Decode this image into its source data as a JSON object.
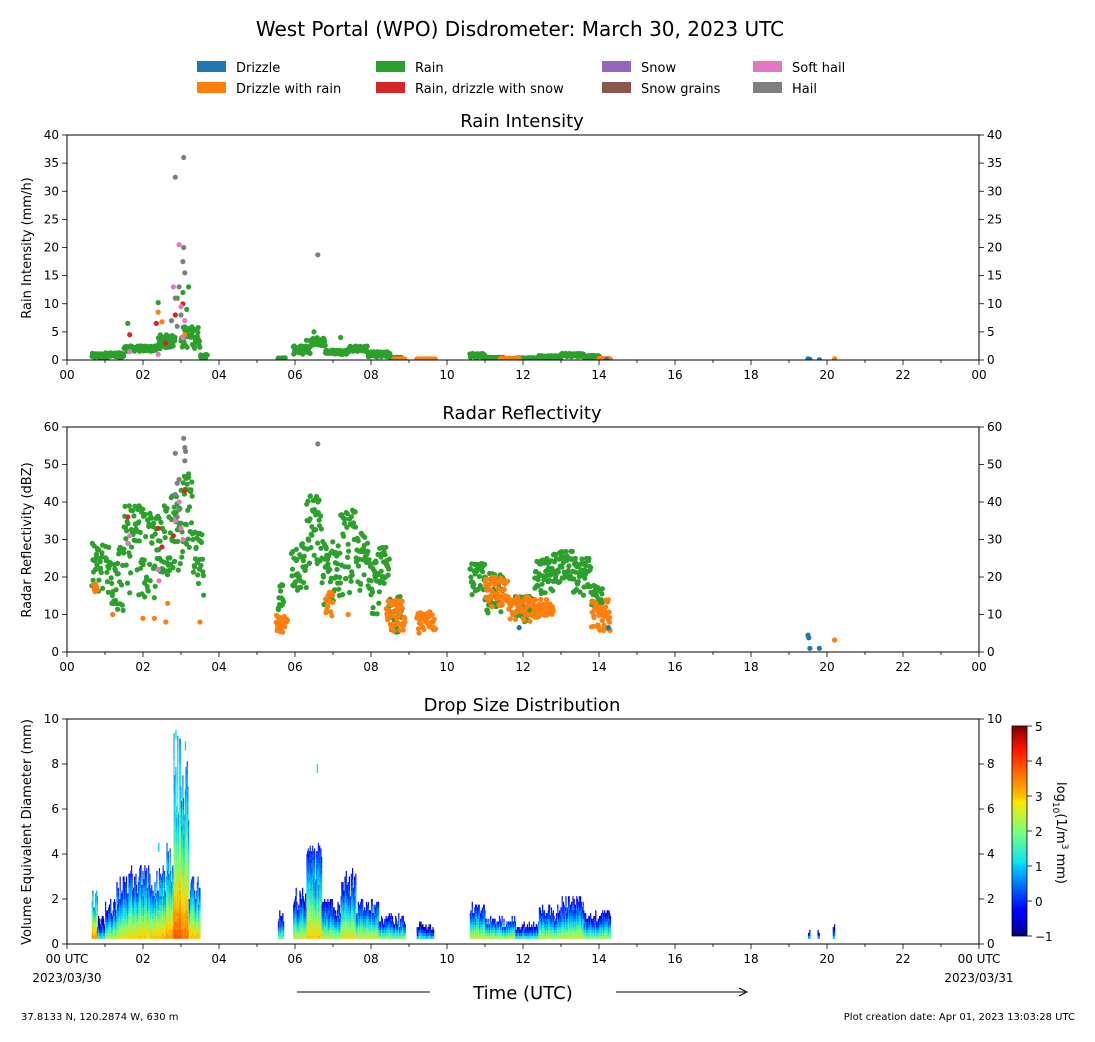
{
  "title": "West Portal (WPO) Disdrometer: March 30, 2023 UTC",
  "legend": {
    "items": [
      {
        "label": "Drizzle",
        "color": "#1f77b4"
      },
      {
        "label": "Rain",
        "color": "#2ca02c"
      },
      {
        "label": "Snow",
        "color": "#9467bd"
      },
      {
        "label": "Soft hail",
        "color": "#e377c2"
      },
      {
        "label": "Drizzle with rain",
        "color": "#ff7f0e"
      },
      {
        "label": "Rain, drizzle with snow",
        "color": "#d62728"
      },
      {
        "label": "Snow grains",
        "color": "#8c564b"
      },
      {
        "label": "Hail",
        "color": "#7f7f7f"
      }
    ]
  },
  "x_ticks": [
    "00",
    "02",
    "04",
    "06",
    "08",
    "10",
    "12",
    "14",
    "16",
    "18",
    "20",
    "22",
    "00"
  ],
  "x_ticks_bottom": [
    "00 UTC",
    "02",
    "04",
    "06",
    "08",
    "10",
    "12",
    "14",
    "16",
    "18",
    "20",
    "22",
    "00 UTC"
  ],
  "date_start": "2023/03/30",
  "date_end": "2023/03/31",
  "xlabel": "Time (UTC)",
  "footer": {
    "location": "37.8133 N, 120.2874 W, 630 m",
    "created": "Plot creation date: Apr 01, 2023 13:03:28 UTC"
  },
  "colorbar": {
    "label_main": "log",
    "label_sub": "10",
    "label_rest": "(1/m",
    "label_sup": "3",
    "label_end": " mm)",
    "ticks": [
      "5",
      "4",
      "3",
      "2",
      "1",
      "0",
      "−1"
    ],
    "range": [
      -1,
      5
    ]
  },
  "chart_data": [
    {
      "type": "scatter",
      "title": "Rain Intensity",
      "ylabel": "Rain Intensity (mm/h)",
      "ylim": [
        0,
        40
      ],
      "yticks": [
        "0",
        "5",
        "10",
        "15",
        "20",
        "25",
        "30",
        "35",
        "40"
      ],
      "xlim": [
        0,
        24
      ],
      "x_units": "hours UTC",
      "series": [
        {
          "name": "Rain",
          "color": "#2ca02c",
          "segments": [
            [
              0.65,
              0.95,
              0.3,
              1.2
            ],
            [
              1.0,
              1.5,
              0.3,
              1.3
            ],
            [
              1.5,
              2.4,
              1.5,
              2.5
            ],
            [
              2.4,
              2.85,
              2.0,
              4.5
            ],
            [
              3.0,
              3.5,
              2.0,
              6.0
            ],
            [
              3.5,
              3.7,
              0.2,
              1.0
            ],
            [
              5.55,
              5.75,
              0.1,
              0.4
            ],
            [
              5.95,
              6.4,
              1.0,
              2.5
            ],
            [
              6.4,
              6.8,
              2.5,
              4.0
            ],
            [
              6.8,
              7.4,
              1.0,
              1.8
            ],
            [
              7.4,
              7.9,
              1.5,
              2.5
            ],
            [
              7.9,
              8.5,
              0.5,
              1.5
            ],
            [
              8.5,
              8.8,
              0.1,
              0.5
            ],
            [
              10.6,
              11.0,
              0.4,
              1.2
            ],
            [
              11.0,
              11.5,
              0.2,
              0.5
            ],
            [
              11.8,
              12.4,
              0.2,
              0.4
            ],
            [
              12.4,
              13.0,
              0.3,
              0.8
            ],
            [
              13.0,
              13.6,
              0.6,
              1.2
            ],
            [
              13.6,
              14.0,
              0.3,
              0.8
            ]
          ],
          "points": [
            [
              1.6,
              6.5
            ],
            [
              2.4,
              10.2
            ],
            [
              2.9,
              11.0
            ],
            [
              3.05,
              12.0
            ],
            [
              3.15,
              9.0
            ],
            [
              3.2,
              13.0
            ],
            [
              6.5,
              5.0
            ],
            [
              7.2,
              4.0
            ],
            [
              6.3,
              3.5
            ]
          ]
        },
        {
          "name": "Drizzle with rain",
          "color": "#ff7f0e",
          "segments": [
            [
              8.6,
              8.9,
              0.05,
              0.2
            ],
            [
              9.2,
              9.7,
              0.05,
              0.2
            ],
            [
              11.4,
              11.9,
              0.1,
              0.3
            ],
            [
              14.0,
              14.3,
              0.05,
              0.3
            ]
          ],
          "points": [
            [
              2.4,
              8.5
            ],
            [
              2.5,
              6.8
            ],
            [
              3.1,
              4.5
            ],
            [
              20.2,
              0.2
            ]
          ]
        },
        {
          "name": "Drizzle",
          "color": "#1f77b4",
          "points": [
            [
              19.5,
              0.2
            ],
            [
              19.55,
              0.1
            ],
            [
              19.8,
              0.05
            ],
            [
              14.2,
              0.1
            ]
          ]
        },
        {
          "name": "Rain, drizzle with snow",
          "color": "#d62728",
          "points": [
            [
              1.65,
              4.5
            ],
            [
              2.35,
              6.5
            ],
            [
              2.6,
              3.0
            ],
            [
              2.85,
              8.0
            ],
            [
              3.05,
              10.0
            ]
          ]
        },
        {
          "name": "Soft hail",
          "color": "#e377c2",
          "points": [
            [
              1.65,
              1.5
            ],
            [
              2.4,
              1.0
            ],
            [
              2.8,
              13.0
            ],
            [
              2.95,
              20.5
            ],
            [
              3.0,
              9.5
            ],
            [
              3.1,
              7.0
            ],
            [
              3.05,
              4.0
            ]
          ]
        },
        {
          "name": "Hail",
          "color": "#7f7f7f",
          "points": [
            [
              2.85,
              32.5
            ],
            [
              3.07,
              36.0
            ],
            [
              3.07,
              20.0
            ],
            [
              3.05,
              17.5
            ],
            [
              3.1,
              15.5
            ],
            [
              2.95,
              13.0
            ],
            [
              2.85,
              11.0
            ],
            [
              3.0,
              8.0
            ],
            [
              2.9,
              6.0
            ],
            [
              6.6,
              18.7
            ],
            [
              2.75,
              7.0
            ]
          ]
        }
      ]
    },
    {
      "type": "scatter",
      "title": "Radar Reflectivity",
      "ylabel": "Radar Reflectivity (dBZ)",
      "ylim": [
        0,
        60
      ],
      "yticks": [
        "0",
        "10",
        "20",
        "30",
        "40",
        "50",
        "60"
      ],
      "xlim": [
        0,
        24
      ],
      "x_units": "hours UTC",
      "series": [
        {
          "name": "Rain",
          "color": "#2ca02c",
          "segments": [
            [
              0.65,
              0.95,
              14,
              29
            ],
            [
              1.0,
              1.5,
              10,
              30
            ],
            [
              1.5,
              2.0,
              15,
              39
            ],
            [
              2.0,
              2.5,
              12,
              37
            ],
            [
              2.5,
              3.0,
              20,
              42
            ],
            [
              3.0,
              3.3,
              25,
              47
            ],
            [
              3.3,
              3.6,
              15,
              32
            ],
            [
              5.55,
              5.7,
              8,
              19
            ],
            [
              5.9,
              6.3,
              15,
              30
            ],
            [
              6.3,
              6.7,
              20,
              42
            ],
            [
              6.7,
              7.2,
              12,
              30
            ],
            [
              7.2,
              7.6,
              15,
              38
            ],
            [
              7.6,
              8.0,
              15,
              32
            ],
            [
              8.0,
              8.5,
              10,
              28
            ],
            [
              8.5,
              8.8,
              5,
              15
            ],
            [
              10.6,
              11.0,
              15,
              24
            ],
            [
              11.0,
              11.5,
              10,
              21
            ],
            [
              11.8,
              12.3,
              8,
              15
            ],
            [
              12.3,
              12.8,
              15,
              25
            ],
            [
              12.8,
              13.3,
              18,
              27
            ],
            [
              13.3,
              13.8,
              15,
              25
            ],
            [
              13.8,
              14.1,
              10,
              18
            ]
          ],
          "points": [
            [
              1.9,
              39.0
            ],
            [
              3.2,
              47.5
            ],
            [
              6.4,
              41.5
            ]
          ]
        },
        {
          "name": "Drizzle with rain",
          "color": "#ff7f0e",
          "segments": [
            [
              0.7,
              0.8,
              16,
              18
            ],
            [
              5.5,
              5.8,
              5,
              10
            ],
            [
              6.8,
              7.0,
              8,
              16
            ],
            [
              8.4,
              8.9,
              5,
              14
            ],
            [
              9.2,
              9.7,
              5,
              11
            ],
            [
              11.0,
              11.6,
              12,
              20
            ],
            [
              11.6,
              12.2,
              8,
              15
            ],
            [
              12.2,
              12.8,
              9,
              14
            ],
            [
              13.8,
              14.3,
              5,
              14
            ]
          ],
          "points": [
            [
              1.2,
              10.0
            ],
            [
              2.0,
              9.0
            ],
            [
              2.6,
              8.0
            ],
            [
              2.65,
              13.0
            ],
            [
              3.5,
              8.0
            ],
            [
              7.4,
              10.0
            ],
            [
              20.2,
              3.2
            ],
            [
              2.3,
              9.0
            ]
          ]
        },
        {
          "name": "Drizzle",
          "color": "#1f77b4",
          "points": [
            [
              19.5,
              4.5
            ],
            [
              19.52,
              3.8
            ],
            [
              19.55,
              1.0
            ],
            [
              19.8,
              1.0
            ],
            [
              14.25,
              6.5
            ],
            [
              11.9,
              6.5
            ]
          ]
        },
        {
          "name": "Rain, drizzle with snow",
          "color": "#d62728",
          "points": [
            [
              1.6,
              36.0
            ],
            [
              2.4,
              33.0
            ],
            [
              2.5,
              28.0
            ],
            [
              2.8,
              31.0
            ],
            [
              3.1,
              43.0
            ]
          ]
        },
        {
          "name": "Soft hail",
          "color": "#e377c2",
          "points": [
            [
              1.6,
              29.0
            ],
            [
              1.65,
              31.0
            ],
            [
              2.4,
              22.0
            ],
            [
              2.42,
              19.0
            ],
            [
              2.85,
              35.0
            ],
            [
              2.95,
              40.0
            ],
            [
              3.0,
              33.0
            ],
            [
              3.05,
              30.0
            ]
          ]
        },
        {
          "name": "Hail",
          "color": "#7f7f7f",
          "points": [
            [
              3.07,
              57.0
            ],
            [
              3.1,
              54.5
            ],
            [
              3.12,
              53.5
            ],
            [
              2.85,
              53.0
            ],
            [
              3.1,
              51.0
            ],
            [
              2.9,
              45.0
            ],
            [
              2.95,
              46.0
            ],
            [
              2.85,
              42.0
            ],
            [
              2.95,
              38.0
            ],
            [
              2.9,
              36.0
            ],
            [
              6.6,
              55.5
            ]
          ]
        }
      ]
    },
    {
      "type": "heatmap",
      "title": "Drop Size Distribution",
      "ylabel": "Volume Equivalent Diameter (mm)",
      "ylim": [
        0,
        10
      ],
      "yticks": [
        "0",
        "2",
        "4",
        "6",
        "8",
        "10"
      ],
      "xlim": [
        0,
        24
      ],
      "x_units": "hours UTC",
      "columns": [
        {
          "x0": 0.65,
          "x1": 0.8,
          "top": 2.5,
          "core": 4.0
        },
        {
          "x0": 0.8,
          "x1": 1.0,
          "top": 1.2,
          "core": 2.5
        },
        {
          "x0": 1.0,
          "x1": 1.3,
          "top": 2.0,
          "core": 3.0
        },
        {
          "x0": 1.3,
          "x1": 1.6,
          "top": 3.0,
          "core": 3.2
        },
        {
          "x0": 1.6,
          "x1": 2.2,
          "top": 3.5,
          "core": 3.4
        },
        {
          "x0": 2.2,
          "x1": 2.6,
          "top": 3.5,
          "core": 3.6
        },
        {
          "x0": 2.6,
          "x1": 2.8,
          "top": 4.5,
          "core": 3.8
        },
        {
          "x0": 2.8,
          "x1": 3.0,
          "top": 10.0,
          "core": 4.2
        },
        {
          "x0": 3.0,
          "x1": 3.2,
          "top": 8.5,
          "core": 4.0
        },
        {
          "x0": 3.2,
          "x1": 3.5,
          "top": 3.0,
          "core": 3.6
        },
        {
          "x0": 5.55,
          "x1": 5.7,
          "top": 1.5,
          "core": 2.8
        },
        {
          "x0": 5.95,
          "x1": 6.3,
          "top": 2.5,
          "core": 3.0
        },
        {
          "x0": 6.3,
          "x1": 6.7,
          "top": 4.5,
          "core": 3.4
        },
        {
          "x0": 6.7,
          "x1": 7.2,
          "top": 2.0,
          "core": 3.0
        },
        {
          "x0": 7.2,
          "x1": 7.6,
          "top": 3.5,
          "core": 3.2
        },
        {
          "x0": 7.6,
          "x1": 8.2,
          "top": 2.0,
          "core": 3.2
        },
        {
          "x0": 8.2,
          "x1": 8.9,
          "top": 1.3,
          "core": 3.0
        },
        {
          "x0": 9.2,
          "x1": 9.65,
          "top": 0.9,
          "core": 2.6
        },
        {
          "x0": 10.6,
          "x1": 11.0,
          "top": 1.8,
          "core": 3.2
        },
        {
          "x0": 11.0,
          "x1": 11.8,
          "top": 1.2,
          "core": 3.3
        },
        {
          "x0": 11.8,
          "x1": 12.4,
          "top": 0.9,
          "core": 2.8
        },
        {
          "x0": 12.4,
          "x1": 13.0,
          "top": 1.7,
          "core": 3.1
        },
        {
          "x0": 13.0,
          "x1": 13.6,
          "top": 2.1,
          "core": 3.1
        },
        {
          "x0": 13.6,
          "x1": 14.3,
          "top": 1.5,
          "core": 3.0
        },
        {
          "x0": 19.5,
          "x1": 19.55,
          "top": 0.6,
          "core": 2.5
        },
        {
          "x0": 19.75,
          "x1": 19.8,
          "top": 0.6,
          "core": 2.5
        },
        {
          "x0": 20.15,
          "x1": 20.2,
          "top": 0.8,
          "core": 2.5
        }
      ],
      "spikes": [
        [
          6.57,
          8.0,
          1.2
        ],
        [
          2.4,
          4.5,
          1.0
        ],
        [
          3.1,
          9.0,
          1.0
        ],
        [
          2.85,
          9.5,
          1.0
        ]
      ]
    }
  ]
}
